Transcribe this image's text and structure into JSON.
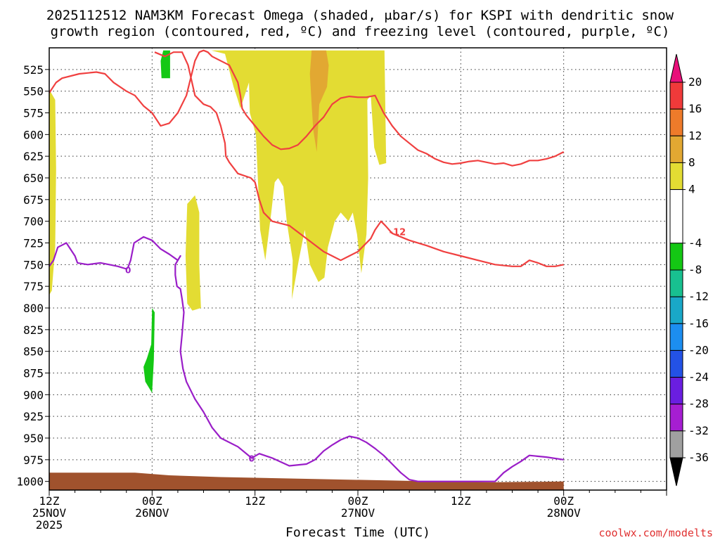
{
  "chart_data": {
    "type": "heatmap",
    "title_line1": "2025112512 NAM3KM Forecast Omega (shaded, μbar/s) for KSPI with dendritic snow",
    "title_line2": "growth region (contoured, red, ºC) and freezing level (contoured, purple, ºC)",
    "xlabel": "Forecast Time (UTC)",
    "credit": "coolwx.com/modelts",
    "x_range_hours": [
      0,
      72
    ],
    "x_ticks": [
      {
        "hour": 0,
        "lines": [
          "12Z",
          "25NOV",
          "2025"
        ]
      },
      {
        "hour": 12,
        "lines": [
          "00Z",
          "26NOV"
        ]
      },
      {
        "hour": 24,
        "lines": [
          "12Z"
        ]
      },
      {
        "hour": 36,
        "lines": [
          "00Z",
          "27NOV"
        ]
      },
      {
        "hour": 48,
        "lines": [
          "12Z"
        ]
      },
      {
        "hour": 60,
        "lines": [
          "00Z",
          "28NOV"
        ]
      }
    ],
    "y_range_mb": [
      500,
      1010
    ],
    "y_ticks": [
      525,
      550,
      575,
      600,
      625,
      650,
      675,
      700,
      725,
      750,
      775,
      800,
      825,
      850,
      875,
      900,
      925,
      950,
      975,
      1000
    ],
    "grid": true,
    "colorbar": {
      "labels": [
        "20",
        "16",
        "12",
        "8",
        "4",
        "-4",
        "-8",
        "-12",
        "-16",
        "-20",
        "-24",
        "-28",
        "-32",
        "-36"
      ],
      "top_arrow_color": "#e8107a",
      "bottom_arrow_color": "#000000",
      "bins": [
        {
          "from": 16,
          "to": 20,
          "color": "#f03a3a"
        },
        {
          "from": 12,
          "to": 16,
          "color": "#ee7b2a"
        },
        {
          "from": 8,
          "to": 12,
          "color": "#e2a832"
        },
        {
          "from": 4,
          "to": 8,
          "color": "#e3dc33"
        },
        {
          "from": -4,
          "to": 4,
          "color": "#ffffff"
        },
        {
          "from": -8,
          "to": -4,
          "color": "#14c814"
        },
        {
          "from": -12,
          "to": -8,
          "color": "#18c090"
        },
        {
          "from": -16,
          "to": -12,
          "color": "#19a8c8"
        },
        {
          "from": -20,
          "to": -16,
          "color": "#1c8ef0"
        },
        {
          "from": -24,
          "to": -20,
          "color": "#2352e6"
        },
        {
          "from": -28,
          "to": -24,
          "color": "#6a1ee0"
        },
        {
          "from": -32,
          "to": -28,
          "color": "#a61ed2"
        },
        {
          "from": -36,
          "to": -32,
          "color": "#a0a0a0"
        }
      ]
    },
    "shaded_regions": [
      {
        "name": "lift-left-edge",
        "color": "#e3dc33",
        "points": [
          [
            0,
            548
          ],
          [
            0.7,
            560
          ],
          [
            0.8,
            640
          ],
          [
            0.7,
            730
          ],
          [
            0.3,
            780
          ],
          [
            0,
            785
          ]
        ]
      },
      {
        "name": "lift-main-core",
        "color": "#e3dc33",
        "points": [
          [
            18.9,
            503
          ],
          [
            20.5,
            507
          ],
          [
            21.5,
            545
          ],
          [
            22,
            560
          ],
          [
            22.3,
            570
          ],
          [
            22.8,
            555
          ],
          [
            23.3,
            540
          ],
          [
            23.4,
            575
          ],
          [
            24.1,
            600
          ],
          [
            24.6,
            710
          ],
          [
            25.2,
            745
          ],
          [
            25.9,
            690
          ],
          [
            26.3,
            655
          ],
          [
            26.7,
            650
          ],
          [
            27.3,
            660
          ],
          [
            27.7,
            700
          ],
          [
            28.4,
            745
          ],
          [
            28.3,
            790
          ],
          [
            29.1,
            745
          ],
          [
            29.8,
            710
          ],
          [
            30.4,
            750
          ],
          [
            31.4,
            770
          ],
          [
            32.1,
            765
          ],
          [
            32.5,
            730
          ],
          [
            33.3,
            700
          ],
          [
            34,
            690
          ],
          [
            34.9,
            700
          ],
          [
            35.4,
            690
          ],
          [
            35.9,
            715
          ],
          [
            36.4,
            760
          ],
          [
            37.0,
            715
          ],
          [
            37.2,
            650
          ],
          [
            37.1,
            560
          ],
          [
            37.5,
            555
          ],
          [
            37.9,
            615
          ],
          [
            38.5,
            635
          ],
          [
            39.3,
            633
          ],
          [
            39.1,
            503
          ]
        ]
      },
      {
        "name": "lift-side-column",
        "color": "#e3dc33",
        "points": [
          [
            16.1,
            680
          ],
          [
            17.0,
            670
          ],
          [
            17.5,
            690
          ],
          [
            17.5,
            750
          ],
          [
            17.7,
            800
          ],
          [
            16.7,
            803
          ],
          [
            16.1,
            795
          ],
          [
            15.9,
            740
          ]
        ]
      },
      {
        "name": "lift-strong-core",
        "color": "#e2a832",
        "points": [
          [
            30.6,
            503
          ],
          [
            32.3,
            503
          ],
          [
            32.6,
            520
          ],
          [
            32.4,
            545
          ],
          [
            31.5,
            565
          ],
          [
            31.2,
            620
          ],
          [
            30.8,
            595
          ],
          [
            30.6,
            565
          ],
          [
            30.4,
            530
          ]
        ]
      },
      {
        "name": "sink-upper",
        "color": "#14c814",
        "points": [
          [
            13.3,
            503
          ],
          [
            14.1,
            503
          ],
          [
            14.1,
            535
          ],
          [
            13.1,
            535
          ],
          [
            13.0,
            515
          ]
        ]
      },
      {
        "name": "sink-lower",
        "color": "#14c814",
        "points": [
          [
            11.4,
            858
          ],
          [
            11.9,
            842
          ],
          [
            12.0,
            800
          ],
          [
            12.3,
            805
          ],
          [
            12.2,
            860
          ],
          [
            12.0,
            898
          ],
          [
            11.2,
            885
          ],
          [
            11.0,
            868
          ]
        ]
      },
      {
        "name": "surface-ground",
        "color": "#a0522d",
        "points": [
          [
            0,
            990
          ],
          [
            10,
            990
          ],
          [
            14,
            993
          ],
          [
            20,
            995
          ],
          [
            30,
            997
          ],
          [
            40,
            999
          ],
          [
            45,
            1000
          ],
          [
            52,
            1001
          ],
          [
            60,
            1000
          ],
          [
            60,
            1010
          ],
          [
            0,
            1010
          ]
        ]
      }
    ],
    "contours": [
      {
        "name": "dgz-upper-bound-minus12",
        "color": "#f04040",
        "points": [
          [
            0,
            552
          ],
          [
            0.8,
            540
          ],
          [
            1.5,
            535
          ],
          [
            3.5,
            530
          ],
          [
            5.5,
            528
          ],
          [
            6.5,
            530
          ],
          [
            7.5,
            540
          ],
          [
            9,
            550
          ],
          [
            10,
            555
          ],
          [
            11,
            567
          ],
          [
            12,
            575
          ],
          [
            13,
            590
          ],
          [
            14,
            587
          ],
          [
            15,
            575
          ],
          [
            16,
            555
          ],
          [
            17,
            515
          ],
          [
            17.5,
            505
          ],
          [
            18,
            503
          ],
          [
            18.5,
            505
          ],
          [
            19,
            510
          ],
          [
            21,
            520
          ],
          [
            22,
            540
          ],
          [
            22.3,
            555
          ],
          [
            22.5,
            570
          ],
          [
            23,
            578
          ],
          [
            24,
            590
          ],
          [
            25,
            602
          ],
          [
            26,
            612
          ],
          [
            27,
            617
          ],
          [
            28,
            616
          ],
          [
            29,
            612
          ],
          [
            30,
            602
          ],
          [
            31,
            590
          ],
          [
            32,
            580
          ],
          [
            33,
            565
          ],
          [
            34,
            558
          ],
          [
            35,
            556
          ],
          [
            36,
            557
          ],
          [
            37,
            557
          ],
          [
            38,
            555
          ],
          [
            39,
            575
          ],
          [
            40,
            590
          ],
          [
            41,
            602
          ],
          [
            42,
            610
          ],
          [
            43,
            618
          ],
          [
            44,
            622
          ],
          [
            45,
            628
          ],
          [
            46,
            632
          ],
          [
            47,
            634
          ],
          [
            48,
            633
          ],
          [
            49,
            631
          ],
          [
            50,
            630
          ],
          [
            51,
            632
          ],
          [
            52,
            634
          ],
          [
            53,
            633
          ],
          [
            54,
            636
          ],
          [
            55,
            634
          ],
          [
            56,
            630
          ],
          [
            57,
            630
          ],
          [
            58,
            628
          ],
          [
            59,
            625
          ],
          [
            60,
            620
          ]
        ]
      },
      {
        "name": "dgz-lower-bound-minus12",
        "color": "#f04040",
        "points": [
          [
            12.3,
            505
          ],
          [
            13.5,
            510
          ],
          [
            14.5,
            505
          ],
          [
            15.5,
            505
          ],
          [
            16.2,
            520
          ],
          [
            17,
            555
          ],
          [
            18,
            565
          ],
          [
            18.8,
            568
          ],
          [
            19.5,
            575
          ],
          [
            20,
            590
          ],
          [
            20.5,
            610
          ],
          [
            20.6,
            625
          ],
          [
            21,
            632
          ],
          [
            22,
            645
          ],
          [
            23.5,
            650
          ],
          [
            24,
            655
          ],
          [
            24.5,
            675
          ],
          [
            25,
            690
          ],
          [
            26,
            700
          ],
          [
            28,
            705
          ],
          [
            30,
            720
          ],
          [
            32,
            735
          ],
          [
            33,
            740
          ],
          [
            34,
            745
          ],
          [
            35,
            740
          ],
          [
            36,
            735
          ],
          [
            37.5,
            720
          ],
          [
            38,
            710
          ],
          [
            38.7,
            700
          ],
          [
            39.2,
            705
          ],
          [
            40,
            714
          ],
          [
            42,
            722
          ],
          [
            44,
            728
          ],
          [
            46,
            735
          ],
          [
            48,
            740
          ],
          [
            50,
            745
          ],
          [
            52,
            750
          ],
          [
            54,
            752
          ],
          [
            55,
            752
          ],
          [
            56,
            745
          ],
          [
            57,
            748
          ],
          [
            58,
            752
          ],
          [
            59,
            752
          ],
          [
            60,
            750
          ]
        ]
      },
      {
        "name": "freezing-level-zero",
        "color": "#9a1ec8",
        "points": [
          [
            0,
            752
          ],
          [
            0.5,
            745
          ],
          [
            1,
            730
          ],
          [
            2,
            725
          ],
          [
            3,
            740
          ],
          [
            3.3,
            748
          ],
          [
            4.5,
            750
          ],
          [
            6,
            748
          ],
          [
            7,
            750
          ],
          [
            8,
            752
          ],
          [
            9,
            755
          ],
          [
            9.2,
            753
          ],
          [
            9.5,
            745
          ],
          [
            9.9,
            725
          ],
          [
            11,
            718
          ],
          [
            12,
            722
          ],
          [
            13,
            732
          ],
          [
            14.0,
            738
          ],
          [
            15,
            745
          ],
          [
            15.3,
            740
          ],
          [
            14.7,
            750
          ],
          [
            14.7,
            762
          ],
          [
            14.9,
            775
          ],
          [
            15.3,
            778
          ],
          [
            15.5,
            790
          ],
          [
            15.7,
            805
          ],
          [
            15.5,
            830
          ],
          [
            15.3,
            850
          ],
          [
            15.6,
            870
          ],
          [
            16,
            885
          ],
          [
            17,
            905
          ],
          [
            18,
            920
          ],
          [
            19,
            938
          ],
          [
            20,
            950
          ],
          [
            22,
            960
          ],
          [
            23.6,
            973
          ],
          [
            24.5,
            968
          ],
          [
            26,
            973
          ],
          [
            28,
            982
          ],
          [
            30,
            980
          ],
          [
            31,
            975
          ],
          [
            32,
            965
          ],
          [
            33,
            958
          ],
          [
            34,
            952
          ],
          [
            35,
            948
          ],
          [
            36,
            950
          ],
          [
            37,
            955
          ],
          [
            38,
            962
          ],
          [
            39,
            970
          ],
          [
            40,
            980
          ],
          [
            41,
            990
          ],
          [
            42,
            998
          ],
          [
            43,
            1000
          ],
          [
            44,
            1000
          ],
          [
            45,
            1000
          ],
          [
            52,
            1000
          ],
          [
            53,
            990
          ],
          [
            54,
            983
          ],
          [
            55,
            977
          ],
          [
            56,
            970
          ],
          [
            58,
            972
          ],
          [
            60,
            975
          ]
        ]
      }
    ],
    "contour_label": {
      "text": "-12",
      "hour": 39.5,
      "mb": 712,
      "color": "#f04040"
    },
    "contour_ticks": [
      {
        "label": "0",
        "hour": 9.2,
        "mb": 756
      },
      {
        "label": "0",
        "hour": 23.6,
        "mb": 973
      }
    ]
  }
}
